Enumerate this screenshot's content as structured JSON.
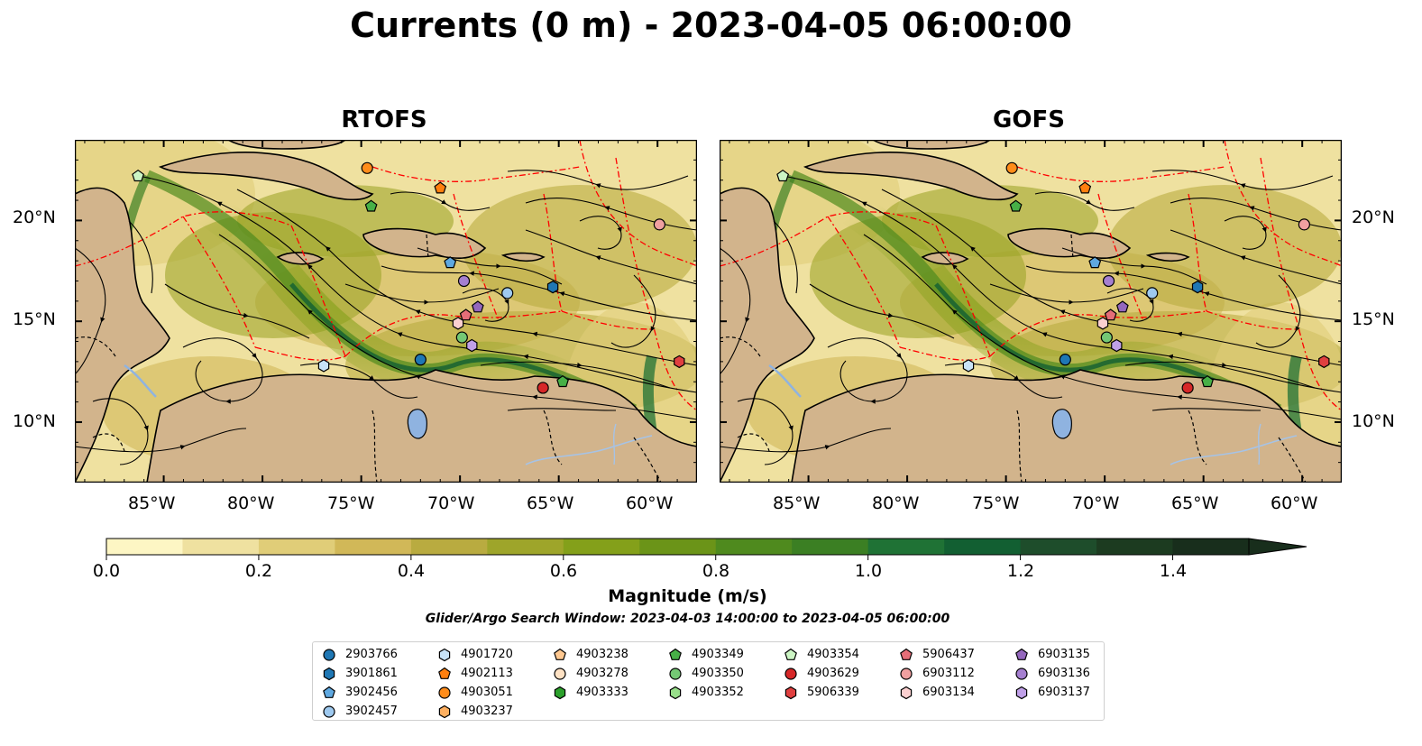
{
  "title": "Currents (0 m) - 2023-04-05 06:00:00",
  "panels": [
    {
      "title": "RTOFS"
    },
    {
      "title": "GOFS"
    }
  ],
  "lat_labels": [
    "20°N",
    "15°N",
    "10°N"
  ],
  "lon_labels": [
    "85°W",
    "80°W",
    "75°W",
    "70°W",
    "65°W",
    "60°W"
  ],
  "colorbar": {
    "title": "Magnitude (m/s)",
    "ticks": [
      "0.0",
      "0.2",
      "0.4",
      "0.6",
      "0.8",
      "1.0",
      "1.2",
      "1.4"
    ],
    "range": [
      0,
      1.5
    ],
    "extend": "max",
    "colors": [
      "#fdf6c4",
      "#efe1a0",
      "#e0cd78",
      "#d1b858",
      "#b9ab40",
      "#9ea52a",
      "#84a01a",
      "#6b9418",
      "#4f8a1e",
      "#3b7f23",
      "#1f7235",
      "#125f32",
      "#1e4d2b",
      "#1c3b20",
      "#182e1c"
    ]
  },
  "search_window": "Glider/Argo Search Window: 2023-04-03 14:00:00 to 2023-04-05 06:00:00",
  "legend": {
    "columns": [
      [
        {
          "id": "2903766",
          "marker": "circle",
          "color": "#1f77b4"
        },
        {
          "id": "3901861",
          "marker": "hexagon",
          "color": "#1f77b4"
        },
        {
          "id": "3902456",
          "marker": "pentagon",
          "color": "#5fa8e0"
        },
        {
          "id": "3902457",
          "marker": "circle",
          "color": "#9ec9ef"
        }
      ],
      [
        {
          "id": "4901720",
          "marker": "hexagon",
          "color": "#c8e3f7"
        },
        {
          "id": "4902113",
          "marker": "pentagon",
          "color": "#ff7f0e"
        },
        {
          "id": "4903051",
          "marker": "circle",
          "color": "#ff8c1a"
        },
        {
          "id": "4903237",
          "marker": "hexagon",
          "color": "#ffb060"
        }
      ],
      [
        {
          "id": "4903238",
          "marker": "pentagon",
          "color": "#ffc890"
        },
        {
          "id": "4903278",
          "marker": "circle",
          "color": "#ffe2c4"
        },
        {
          "id": "4903333",
          "marker": "hexagon",
          "color": "#2ca02c"
        }
      ],
      [
        {
          "id": "4903349",
          "marker": "pentagon",
          "color": "#47b047"
        },
        {
          "id": "4903350",
          "marker": "circle",
          "color": "#74c874"
        },
        {
          "id": "4903352",
          "marker": "hexagon",
          "color": "#98df8a"
        }
      ],
      [
        {
          "id": "4903354",
          "marker": "pentagon",
          "color": "#ccf5c4"
        },
        {
          "id": "4903629",
          "marker": "circle",
          "color": "#d62728"
        },
        {
          "id": "5906339",
          "marker": "hexagon",
          "color": "#e04040"
        }
      ],
      [
        {
          "id": "5906437",
          "marker": "pentagon",
          "color": "#e56e78"
        },
        {
          "id": "6903112",
          "marker": "circle",
          "color": "#f0a0a0"
        },
        {
          "id": "6903134",
          "marker": "hexagon",
          "color": "#fbd0d0"
        }
      ],
      [
        {
          "id": "6903135",
          "marker": "pentagon",
          "color": "#9467bd"
        },
        {
          "id": "6903136",
          "marker": "circle",
          "color": "#a57fd0"
        },
        {
          "id": "6903137",
          "marker": "hexagon",
          "color": "#c0a0e8"
        }
      ]
    ]
  },
  "floats": [
    {
      "lon": -86.3,
      "lat": 22.2,
      "marker": "pentagon",
      "color": "#ccf5c4"
    },
    {
      "lon": -74.7,
      "lat": 22.6,
      "marker": "circle",
      "color": "#ff8c1a"
    },
    {
      "lon": -74.5,
      "lat": 20.7,
      "marker": "pentagon",
      "color": "#47b047"
    },
    {
      "lon": -71.0,
      "lat": 21.6,
      "marker": "pentagon",
      "color": "#ff7f0e"
    },
    {
      "lon": -59.9,
      "lat": 19.8,
      "marker": "circle",
      "color": "#f0a0a0"
    },
    {
      "lon": -70.5,
      "lat": 17.9,
      "marker": "pentagon",
      "color": "#5fa8e0"
    },
    {
      "lon": -69.8,
      "lat": 17.0,
      "marker": "circle",
      "color": "#a57fd0"
    },
    {
      "lon": -67.6,
      "lat": 16.4,
      "marker": "circle",
      "color": "#9ec9ef"
    },
    {
      "lon": -65.3,
      "lat": 16.7,
      "marker": "hexagon",
      "color": "#1f77b4"
    },
    {
      "lon": -69.1,
      "lat": 15.7,
      "marker": "pentagon",
      "color": "#9467bd"
    },
    {
      "lon": -69.7,
      "lat": 15.3,
      "marker": "pentagon",
      "color": "#e56e78"
    },
    {
      "lon": -70.1,
      "lat": 14.9,
      "marker": "hexagon",
      "color": "#fbd0d0"
    },
    {
      "lon": -69.9,
      "lat": 14.2,
      "marker": "circle",
      "color": "#74c874"
    },
    {
      "lon": -69.4,
      "lat": 13.8,
      "marker": "hexagon",
      "color": "#c0a0e8"
    },
    {
      "lon": -72.0,
      "lat": 13.1,
      "marker": "circle",
      "color": "#1f77b4"
    },
    {
      "lon": -76.9,
      "lat": 12.8,
      "marker": "hexagon",
      "color": "#c8e3f7"
    },
    {
      "lon": -65.8,
      "lat": 11.7,
      "marker": "circle",
      "color": "#d62728"
    },
    {
      "lon": -64.8,
      "lat": 12.0,
      "marker": "pentagon",
      "color": "#47b047"
    },
    {
      "lon": -58.9,
      "lat": 13.0,
      "marker": "hexagon",
      "color": "#e04040"
    }
  ]
}
